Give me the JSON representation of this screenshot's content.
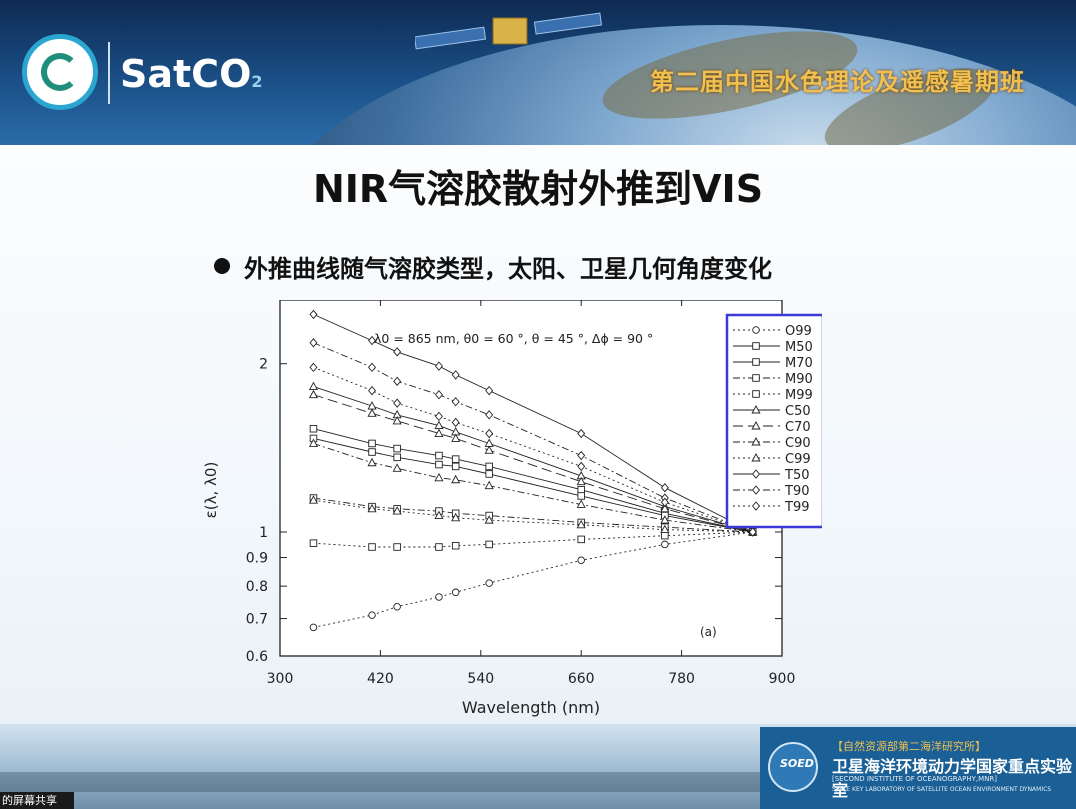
{
  "header": {
    "logo_text": "SatCO",
    "logo_sub": "2",
    "banner_title": "第二届中国水色理论及遥感暑期班"
  },
  "slide": {
    "title": "NIR气溶胶散射外推到VIS",
    "bullet": "外推曲线随气溶胶类型，太阳、卫星几何角度变化"
  },
  "chart_data": {
    "type": "line",
    "annotation": "λ0 = 865 nm,  θ0 = 60 °, θ = 45 °, Δϕ = 90 °",
    "panel_label": "(a)",
    "xlabel": "Wavelength (nm)",
    "ylabel": "ε(λ, λ0)",
    "xlim": [
      300,
      900
    ],
    "ylim": [
      0.6,
      2.6
    ],
    "yscale": "log",
    "xticks": [
      "300",
      "420",
      "540",
      "660",
      "780",
      "900"
    ],
    "yticks": [
      {
        "v": 0.6,
        "label": "0.6"
      },
      {
        "v": 0.7,
        "label": "0.7"
      },
      {
        "v": 0.8,
        "label": "0.8"
      },
      {
        "v": 0.9,
        "label": "0.9"
      },
      {
        "v": 1.0,
        "label": "1"
      },
      {
        "v": 2.0,
        "label": "2"
      }
    ],
    "x": [
      340,
      410,
      440,
      490,
      510,
      550,
      660,
      760,
      865
    ],
    "series": [
      {
        "name": "O99",
        "marker": "circle",
        "dash": "2,3",
        "values": [
          0.675,
          0.71,
          0.735,
          0.765,
          0.78,
          0.81,
          0.89,
          0.95,
          1.0
        ]
      },
      {
        "name": "M50",
        "marker": "square",
        "dash": "",
        "values": [
          1.53,
          1.44,
          1.41,
          1.37,
          1.35,
          1.31,
          1.19,
          1.08,
          1.0
        ]
      },
      {
        "name": "M70",
        "marker": "square",
        "dash": "",
        "values": [
          1.47,
          1.39,
          1.36,
          1.32,
          1.31,
          1.27,
          1.16,
          1.07,
          1.0
        ]
      },
      {
        "name": "M90",
        "marker": "square",
        "dash": "7,3,2,3",
        "values": [
          1.15,
          1.11,
          1.1,
          1.09,
          1.08,
          1.07,
          1.04,
          1.02,
          1.0
        ]
      },
      {
        "name": "M99",
        "marker": "square",
        "dash": "2,3",
        "values": [
          0.955,
          0.94,
          0.94,
          0.94,
          0.945,
          0.95,
          0.97,
          0.985,
          1.0
        ]
      },
      {
        "name": "C50",
        "marker": "triangle",
        "dash": "",
        "values": [
          1.82,
          1.68,
          1.62,
          1.55,
          1.51,
          1.44,
          1.26,
          1.11,
          1.0
        ]
      },
      {
        "name": "C70",
        "marker": "triangle",
        "dash": "10,5",
        "values": [
          1.76,
          1.63,
          1.58,
          1.5,
          1.47,
          1.4,
          1.23,
          1.1,
          1.0
        ]
      },
      {
        "name": "C90",
        "marker": "triangle",
        "dash": "7,3,2,3",
        "values": [
          1.44,
          1.33,
          1.3,
          1.25,
          1.24,
          1.21,
          1.12,
          1.05,
          1.0
        ]
      },
      {
        "name": "C99",
        "marker": "triangle",
        "dash": "2,3",
        "values": [
          1.14,
          1.1,
          1.09,
          1.07,
          1.06,
          1.05,
          1.03,
          1.01,
          1.0
        ]
      },
      {
        "name": "T50",
        "marker": "diamond",
        "dash": "",
        "values": [
          2.45,
          2.2,
          2.1,
          1.98,
          1.91,
          1.79,
          1.5,
          1.2,
          1.0
        ]
      },
      {
        "name": "T90",
        "marker": "diamond",
        "dash": "7,3,2,3",
        "values": [
          2.18,
          1.97,
          1.86,
          1.76,
          1.71,
          1.62,
          1.37,
          1.15,
          1.0
        ]
      },
      {
        "name": "T99",
        "marker": "diamond",
        "dash": "2,3",
        "values": [
          1.97,
          1.79,
          1.7,
          1.61,
          1.57,
          1.5,
          1.31,
          1.13,
          1.0
        ]
      }
    ]
  },
  "footer": {
    "inst_logo": "SOED",
    "inst_line1": "【自然资源部第二海洋研究所】",
    "inst_line2": "卫星海洋环境动力学国家重点实验室",
    "inst_line3": "[SECOND INSTITUTE OF OCEANOGRAPHY,MNR]",
    "inst_line4": "STATE KEY LABORATORY OF SATELLITE OCEAN ENVIRONMENT DYNAMICS",
    "share_label": "的屏幕共享"
  }
}
